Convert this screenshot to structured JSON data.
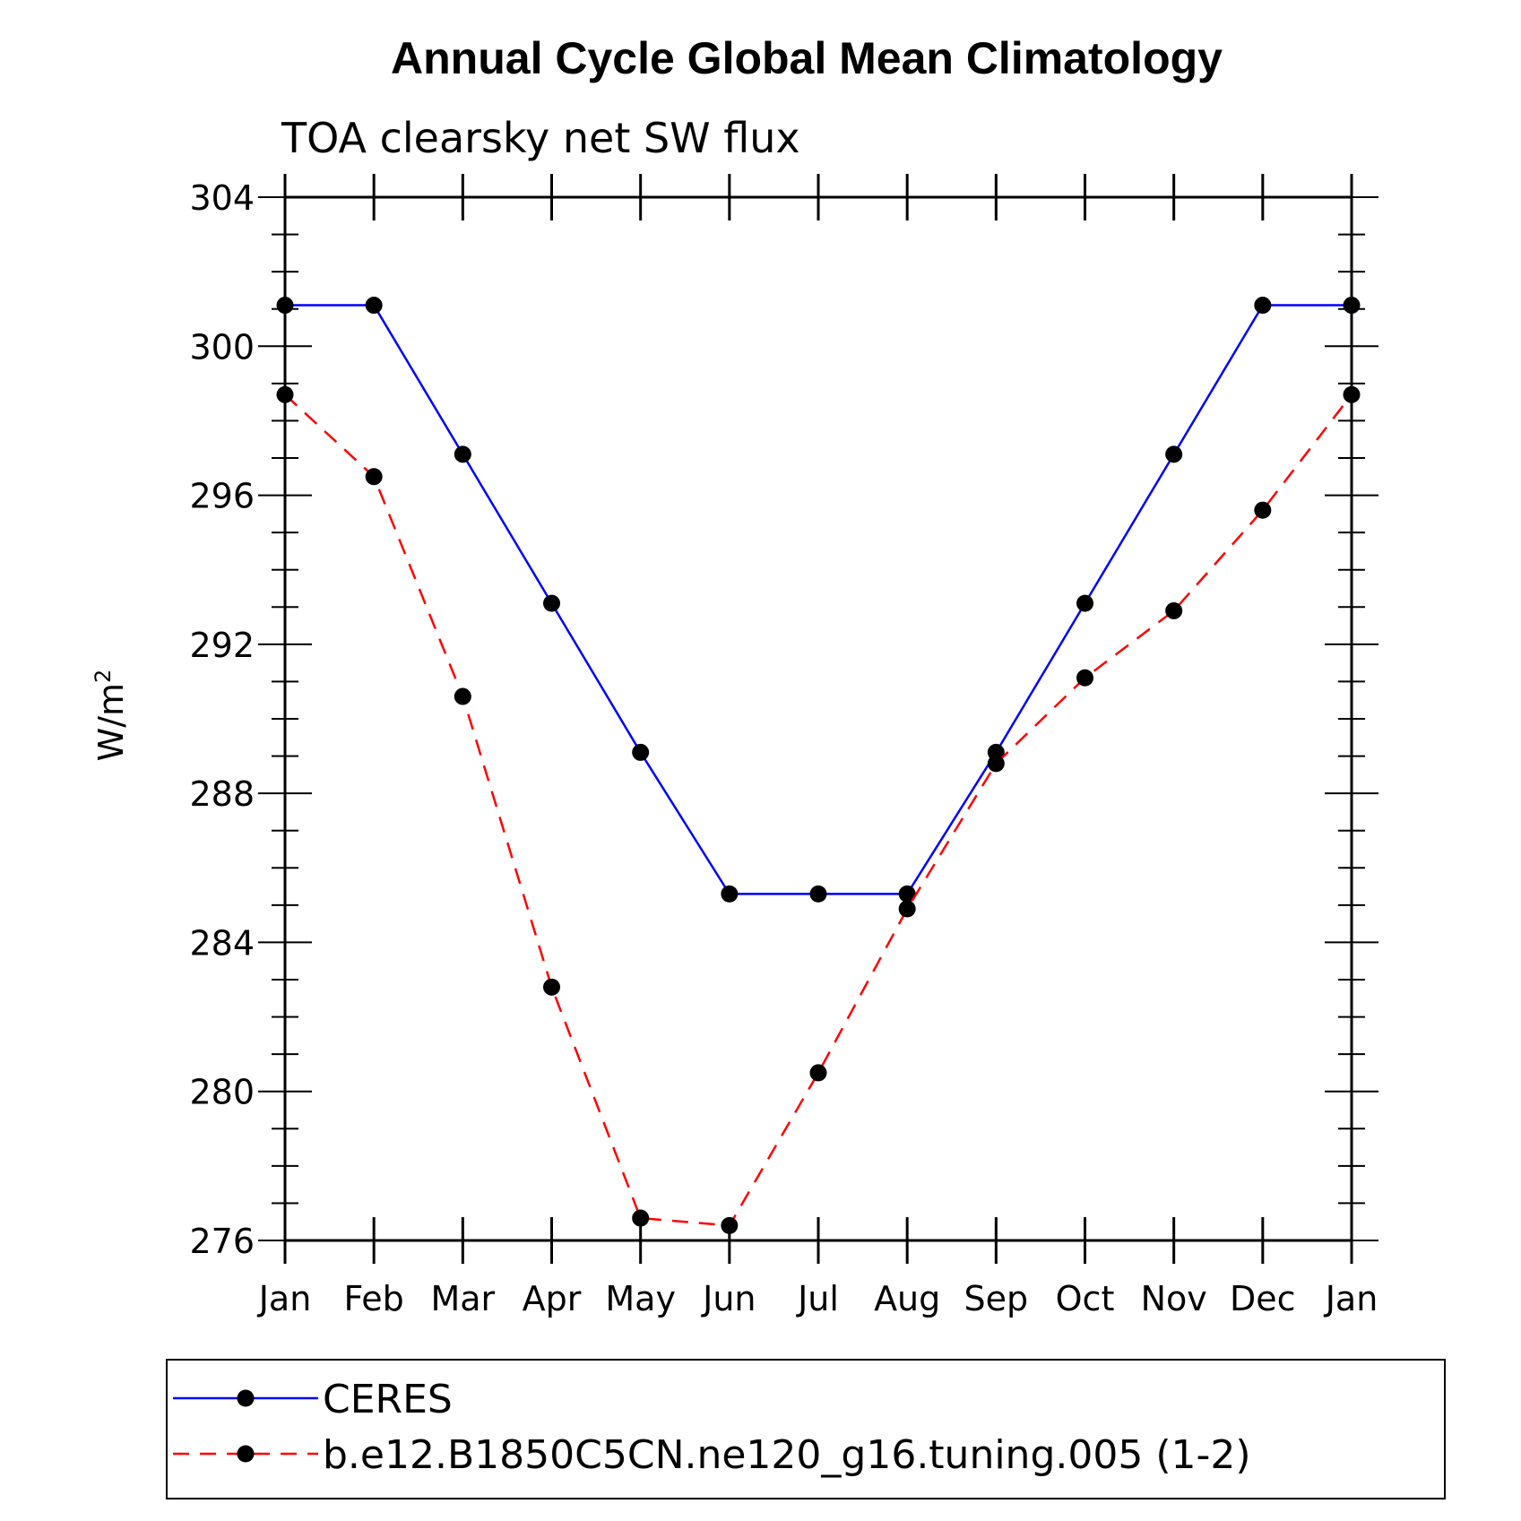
{
  "chart_data": {
    "type": "line",
    "title": "Annual Cycle Global Mean Climatology",
    "subtitle": "TOA clearsky net SW flux",
    "ylabel": "W/m",
    "ylabel_superscript": "2",
    "xlabel": "",
    "categories": [
      "Jan",
      "Feb",
      "Mar",
      "Apr",
      "May",
      "Jun",
      "Jul",
      "Aug",
      "Sep",
      "Oct",
      "Nov",
      "Dec",
      "Jan"
    ],
    "ylim": [
      276,
      304
    ],
    "yticks": [
      "276",
      "280",
      "284",
      "288",
      "292",
      "296",
      "300",
      "304"
    ],
    "series": [
      {
        "name": "CERES",
        "color": "#0000ff",
        "dash": "solid",
        "values": [
          301.1,
          301.1,
          297.1,
          293.1,
          289.1,
          285.3,
          285.3,
          285.3,
          289.1,
          293.1,
          297.1,
          301.1,
          301.1
        ]
      },
      {
        "name": "b.e12.B1850C5CN.ne120_g16.tuning.005 (1-2)",
        "color": "#ff0000",
        "dash": "dashed",
        "values": [
          298.7,
          296.5,
          290.6,
          282.8,
          276.6,
          276.4,
          280.5,
          284.9,
          288.8,
          291.1,
          292.9,
          295.6,
          298.7
        ]
      }
    ],
    "legend_position": "bottom"
  }
}
